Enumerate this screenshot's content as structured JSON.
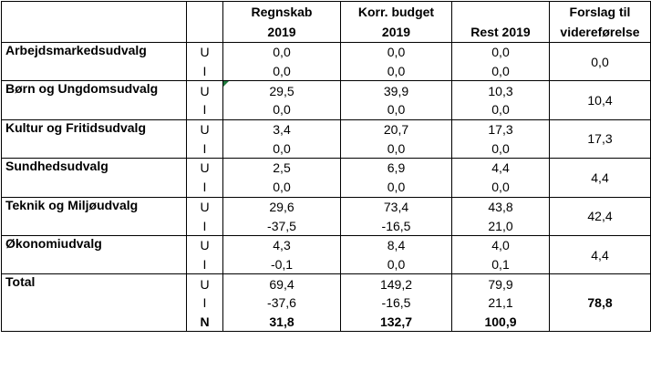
{
  "header": {
    "col1": "",
    "col2": "",
    "regnskab": [
      "Regnskab",
      "2019"
    ],
    "korr": [
      "Korr. budget",
      "2019"
    ],
    "rest": "Rest 2019",
    "forslag": [
      "Forslag til",
      "videreførelse"
    ]
  },
  "rows": [
    {
      "name": "Arbejdsmarkedsudvalg",
      "u": [
        "U",
        "0,0",
        "0,0",
        "0,0"
      ],
      "i": [
        "I",
        "0,0",
        "0,0",
        "0,0"
      ],
      "forslag": "0,0"
    },
    {
      "name": "Børn og Ungdomsudvalg",
      "u": [
        "U",
        "29,5",
        "39,9",
        "10,3"
      ],
      "i": [
        "I",
        "0,0",
        "0,0",
        "0,0"
      ],
      "forslag": "10,4"
    },
    {
      "name": "Kultur og Fritidsudvalg",
      "u": [
        "U",
        "3,4",
        "20,7",
        "17,3"
      ],
      "i": [
        "I",
        "0,0",
        "0,0",
        "0,0"
      ],
      "forslag": "17,3"
    },
    {
      "name": "Sundhedsudvalg",
      "u": [
        "U",
        "2,5",
        "6,9",
        "4,4"
      ],
      "i": [
        "I",
        "0,0",
        "0,0",
        "0,0"
      ],
      "forslag": "4,4"
    },
    {
      "name": "Teknik og Miljøudvalg",
      "u": [
        "U",
        "29,6",
        "73,4",
        "43,8"
      ],
      "i": [
        "I",
        "-37,5",
        "-16,5",
        "21,0"
      ],
      "forslag": "42,4"
    },
    {
      "name": "Økonomiudvalg",
      "u": [
        "U",
        "4,3",
        "8,4",
        "4,0"
      ],
      "i": [
        "I",
        "-0,1",
        "0,0",
        "0,1"
      ],
      "forslag": "4,4"
    }
  ],
  "total": {
    "name": "Total",
    "u": [
      "U",
      "69,4",
      "149,2",
      "79,9"
    ],
    "i": [
      "I",
      "-37,6",
      "-16,5",
      "21,1"
    ],
    "n": [
      "N",
      "31,8",
      "132,7",
      "100,9"
    ],
    "forslag": "78,8"
  }
}
